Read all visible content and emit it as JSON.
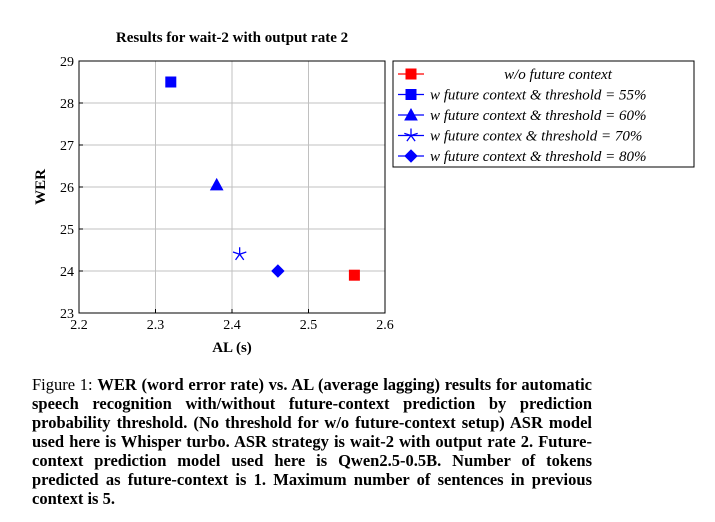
{
  "chart_data": {
    "type": "scatter",
    "title": "Results for wait-2 with output rate 2",
    "xlabel": "AL (s)",
    "ylabel": "WER",
    "xlim": [
      2.2,
      2.6
    ],
    "ylim": [
      23,
      29
    ],
    "xticks": [
      "2.2",
      "2.3",
      "2.4",
      "2.5",
      "2.6"
    ],
    "yticks": [
      "23",
      "24",
      "25",
      "26",
      "27",
      "28",
      "29"
    ],
    "grid": true,
    "legend_position": "outside-right",
    "series": [
      {
        "name": "w/o future context",
        "marker": "square",
        "color": "#ff0000",
        "points": [
          {
            "x": 2.56,
            "y": 23.9
          }
        ]
      },
      {
        "name": "w future context & threshold = 55%",
        "marker": "square",
        "color": "#0000ff",
        "points": [
          {
            "x": 2.32,
            "y": 28.5
          }
        ]
      },
      {
        "name": "w future context & threshold = 60%",
        "marker": "triangle",
        "color": "#0000ff",
        "points": [
          {
            "x": 2.38,
            "y": 26.05
          }
        ]
      },
      {
        "name": "w future contex & threshold = 70%",
        "marker": "star",
        "color": "#0000ff",
        "points": [
          {
            "x": 2.41,
            "y": 24.4
          }
        ]
      },
      {
        "name": "w future context & threshold = 80%",
        "marker": "diamond",
        "color": "#0000ff",
        "points": [
          {
            "x": 2.46,
            "y": 24.0
          }
        ]
      }
    ]
  },
  "caption": {
    "label": "Figure 1:",
    "text": "WER (word error rate) vs. AL (average lagging) results for automatic speech recognition with/without future-context prediction by prediction probability threshold. (No threshold for w/o future-context setup) ASR model used here is Whisper turbo. ASR strategy is wait-2 with output rate 2. Future-context prediction model used here is Qwen2.5-0.5B. Number of tokens predicted as future-context is 1. Maximum number of sentences in previous context is 5."
  }
}
